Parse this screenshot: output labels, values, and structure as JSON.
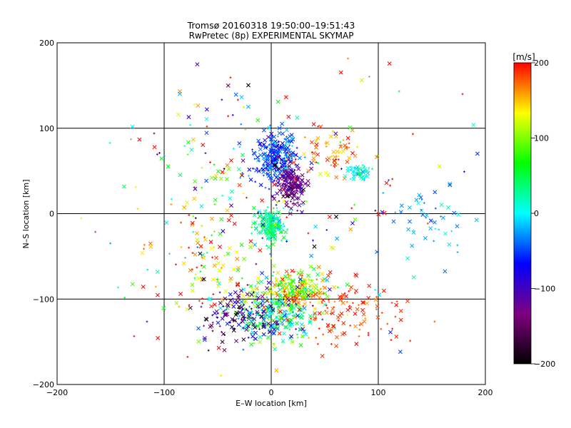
{
  "chart_data": {
    "type": "scatter",
    "title": "Tromsø 20160318 19:50:00–19:51:43",
    "subtitle": "RwPretec (8p) EXPERIMENTAL SKYMAP",
    "xlabel": "E–W location [km]",
    "ylabel": "N–S location [km]",
    "xlim": [
      -200,
      200
    ],
    "ylim": [
      -200,
      200
    ],
    "xticks": [
      "−200",
      "−100",
      "0",
      "100",
      "200"
    ],
    "yticks": [
      "200",
      "100",
      "0",
      "−100",
      "−200"
    ],
    "grid": true,
    "colorbar": {
      "label": "[m/s]",
      "range": [
        -200,
        200
      ],
      "ticks": [
        "200",
        "100",
        "0",
        "−100",
        "−200"
      ],
      "colormap": [
        "#000000",
        "#800080",
        "#0000ff",
        "#00ffff",
        "#00ff00",
        "#ffff00",
        "#ff0000"
      ]
    },
    "markers": [
      "x",
      "+"
    ],
    "clusters": [
      {
        "x": 5,
        "y": 65,
        "sx": 10,
        "sy": 15,
        "n": 280,
        "v": -55,
        "sv": 25
      },
      {
        "x": 18,
        "y": 35,
        "sx": 8,
        "sy": 12,
        "n": 180,
        "v": -130,
        "sv": 20
      },
      {
        "x": 0,
        "y": -15,
        "sx": 7,
        "sy": 10,
        "n": 180,
        "v": 30,
        "sv": 30
      },
      {
        "x": 20,
        "y": -90,
        "sx": 15,
        "sy": 12,
        "n": 260,
        "v": 110,
        "sv": 50
      },
      {
        "x": 5,
        "y": -120,
        "sx": 20,
        "sy": 18,
        "n": 240,
        "v": 20,
        "sv": 60
      },
      {
        "x": -30,
        "y": -120,
        "sx": 18,
        "sy": 15,
        "n": 140,
        "v": -120,
        "sv": 60
      },
      {
        "x": 70,
        "y": -115,
        "sx": 25,
        "sy": 20,
        "n": 120,
        "v": 185,
        "sv": 15
      },
      {
        "x": 60,
        "y": 70,
        "sx": 15,
        "sy": 15,
        "n": 60,
        "v": 170,
        "sv": 30
      },
      {
        "x": 82,
        "y": 48,
        "sx": 5,
        "sy": 5,
        "n": 50,
        "v": 10,
        "sv": 15
      },
      {
        "x": 150,
        "y": -5,
        "sx": 20,
        "sy": 20,
        "n": 50,
        "v": -20,
        "sv": 20
      },
      {
        "x": -60,
        "y": -60,
        "sx": 30,
        "sy": 30,
        "n": 100,
        "v": 150,
        "sv": 60
      },
      {
        "x": -40,
        "y": 60,
        "sx": 40,
        "sy": 40,
        "n": 90,
        "v": 50,
        "sv": 120
      },
      {
        "x": 0,
        "y": 0,
        "sx": 90,
        "sy": 90,
        "n": 150,
        "v": 50,
        "sv": 130
      }
    ]
  }
}
